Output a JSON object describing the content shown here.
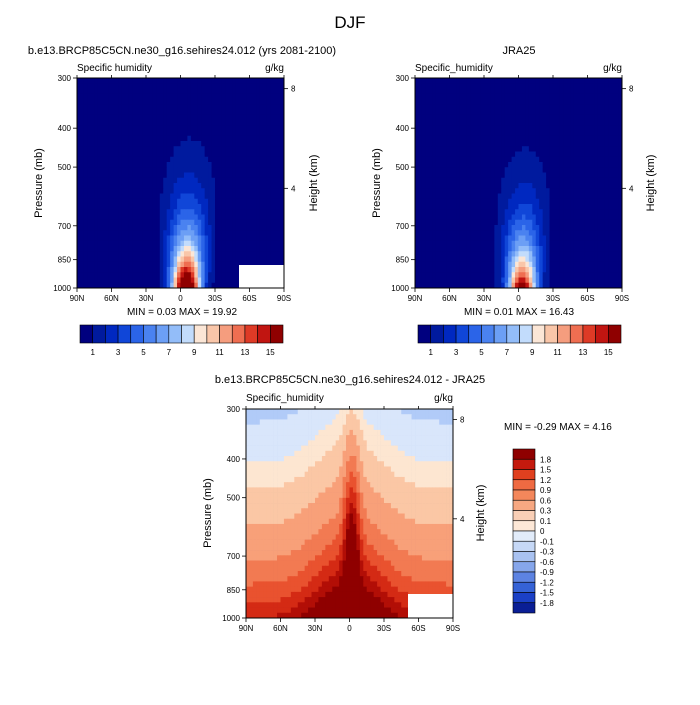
{
  "page": {
    "title": "DJF",
    "label_bar_ticks": [
      "1",
      "3",
      "5",
      "7",
      "9",
      "11",
      "13",
      "15"
    ]
  },
  "colors": {
    "sh_ramp": [
      "#00007f",
      "#001a9e",
      "#0028c0",
      "#1046d8",
      "#2b64e8",
      "#4a82f0",
      "#6c9ff5",
      "#93bdf9",
      "#c2dcfc",
      "#fbe6d6",
      "#f9c6a9",
      "#f59d7e",
      "#ef6e51",
      "#de3a26",
      "#c11511",
      "#8f0000"
    ],
    "diff_fill": [
      "#0b1f8f",
      "#0f33b8",
      "#1a4fd6",
      "#3a70e6",
      "#5e8fef",
      "#86adf4",
      "#b1cbf8",
      "#d9e6fb",
      "#fde6d1",
      "#fbc7a5",
      "#f8a079",
      "#f27a52",
      "#e9522f",
      "#d42a14",
      "#b20e06",
      "#8f0000"
    ],
    "diff_legend": [
      "#8f0000",
      "#c41a0e",
      "#e0401f",
      "#ef6a42",
      "#f4875b",
      "#f7a882",
      "#f9cfb6",
      "#fde8d7",
      "#e2ecfa",
      "#c6d8f6",
      "#a9c2f1",
      "#86a6eb",
      "#5d83e2",
      "#3562d6",
      "#1b40c6",
      "#0a1e95"
    ]
  },
  "chart_data": [
    {
      "type": "heatmap",
      "id": "model",
      "title": "b.e13.BRCP85C5CN.ne30_g16.sehires24.012 (yrs 2081-2100)",
      "left_string": "Specific humidity",
      "right_string": "g/kg",
      "variable": "Specific humidity",
      "units": "g/kg",
      "xlabel": "",
      "ylabel": "Pressure (mb)",
      "y2label": "Height (km)",
      "x_ticks": [
        "90N",
        "60N",
        "30N",
        "0",
        "30S",
        "60S",
        "90S"
      ],
      "x_tick_values": [
        90,
        60,
        30,
        0,
        -30,
        -60,
        -90
      ],
      "y_ticks": [
        "300",
        "400",
        "500",
        "700",
        "850",
        "1000"
      ],
      "y_tick_values": [
        300,
        400,
        500,
        700,
        850,
        1000
      ],
      "y2_ticks": [
        "8",
        "4"
      ],
      "y2_tick_values": [
        8,
        4
      ],
      "min_label": "MIN =  0.03  MAX =  19.92",
      "min": 0.03,
      "max": 19.92,
      "contour_levels": [
        1,
        2,
        3,
        4,
        5,
        6,
        7,
        8,
        9,
        10,
        11,
        12,
        13,
        14,
        15
      ],
      "peak_lat": -5,
      "peak_value": 19.92,
      "colorbar_ticks": [
        "1",
        "3",
        "5",
        "7",
        "9",
        "11",
        "13",
        "15"
      ]
    },
    {
      "type": "heatmap",
      "id": "obs",
      "title": "JRA25",
      "left_string": "Specific_humidity",
      "right_string": "g/kg",
      "variable": "Specific humidity",
      "units": "g/kg",
      "xlabel": "",
      "ylabel": "Pressure (mb)",
      "y2label": "Height (km)",
      "x_ticks": [
        "90N",
        "60N",
        "30N",
        "0",
        "30S",
        "60S",
        "90S"
      ],
      "x_tick_values": [
        90,
        60,
        30,
        0,
        -30,
        -60,
        -90
      ],
      "y_ticks": [
        "300",
        "400",
        "500",
        "700",
        "850",
        "1000"
      ],
      "y_tick_values": [
        300,
        400,
        500,
        700,
        850,
        1000
      ],
      "y2_ticks": [
        "8",
        "4"
      ],
      "y2_tick_values": [
        8,
        4
      ],
      "min_label": "MIN =  0.01  MAX =  16.43",
      "min": 0.01,
      "max": 16.43,
      "contour_levels": [
        1,
        2,
        3,
        4,
        5,
        6,
        7,
        8,
        9,
        10,
        11,
        12,
        13,
        14,
        15
      ],
      "peak_lat": -3,
      "peak_value": 16.43,
      "colorbar_ticks": [
        "1",
        "3",
        "5",
        "7",
        "9",
        "11",
        "13",
        "15"
      ]
    },
    {
      "type": "heatmap",
      "id": "diff",
      "title": "b.e13.BRCP85C5CN.ne30_g16.sehires24.012 - JRA25",
      "left_string": "Specific_humidity",
      "right_string": "g/kg",
      "variable": "Specific humidity difference",
      "units": "g/kg",
      "xlabel": "",
      "ylabel": "Pressure (mb)",
      "y2label": "Height (km)",
      "x_ticks": [
        "90N",
        "60N",
        "30N",
        "0",
        "30S",
        "60S",
        "90S"
      ],
      "x_tick_values": [
        90,
        60,
        30,
        0,
        -30,
        -60,
        -90
      ],
      "y_ticks": [
        "300",
        "400",
        "500",
        "700",
        "850",
        "1000"
      ],
      "y_tick_values": [
        300,
        400,
        500,
        700,
        850,
        1000
      ],
      "y2_ticks": [
        "8",
        "4"
      ],
      "y2_tick_values": [
        8,
        4
      ],
      "min_label": "MIN = -0.29  MAX =  4.16",
      "min": -0.29,
      "max": 4.16,
      "contour_levels": [
        -1.8,
        -1.5,
        -1.2,
        -0.9,
        -0.6,
        -0.3,
        -0.1,
        0,
        0.1,
        0.3,
        0.6,
        0.9,
        1.2,
        1.5,
        1.8
      ],
      "colorbar_ticks": [
        "1.8",
        "1.5",
        "1.2",
        "0.9",
        "0.6",
        "0.3",
        "0.1",
        "0",
        "-0.1",
        "-0.3",
        "-0.6",
        "-0.9",
        "-1.2",
        "-1.5",
        "-1.8"
      ]
    }
  ]
}
